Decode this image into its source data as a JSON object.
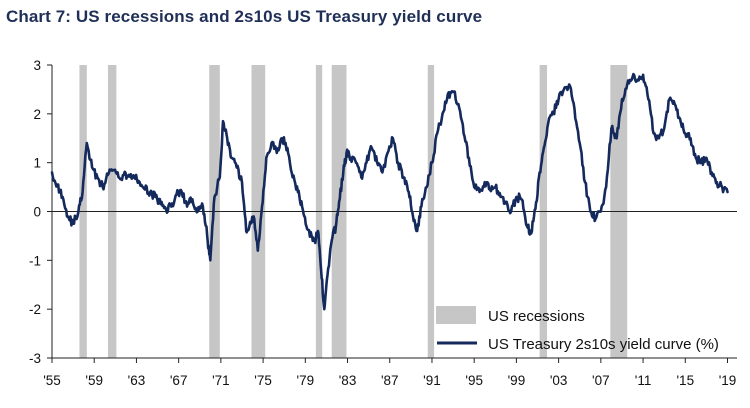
{
  "title": "Chart 7: US recessions and 2s10s US Treasury yield curve",
  "chart_data": {
    "type": "line",
    "title": "Chart 7: US recessions and 2s10s US Treasury yield curve",
    "xlabel": "",
    "ylabel": "",
    "xlim": [
      1955,
      2019.9
    ],
    "ylim": [
      -3,
      3
    ],
    "grid": false,
    "legend_position": "bottom-right",
    "x_ticks": [
      1955,
      1959,
      1963,
      1967,
      1971,
      1975,
      1979,
      1983,
      1987,
      1991,
      1995,
      1999,
      2003,
      2007,
      2011,
      2015,
      2019
    ],
    "x_tick_labels": [
      "'55",
      "'59",
      "'63",
      "'67",
      "'71",
      "'75",
      "'79",
      "'83",
      "'87",
      "'91",
      "'95",
      "'99",
      "'03",
      "'07",
      "'11",
      "'15",
      "'19"
    ],
    "y_ticks": [
      -3,
      -2,
      -1,
      0,
      1,
      2,
      3
    ],
    "y_tick_labels": [
      "-3",
      "-2",
      "-1",
      "0",
      "1",
      "2",
      "3"
    ],
    "recessions": {
      "name": "US recessions",
      "color": "#c6c6c6",
      "periods": [
        [
          1957.6,
          1958.3
        ],
        [
          1960.3,
          1961.1
        ],
        [
          1969.9,
          1970.9
        ],
        [
          1973.9,
          1975.2
        ],
        [
          1980.0,
          1980.6
        ],
        [
          1981.5,
          1982.9
        ],
        [
          1990.6,
          1991.2
        ],
        [
          2001.2,
          2001.9
        ],
        [
          2007.9,
          2009.5
        ]
      ]
    },
    "series": [
      {
        "name": "US Treasury 2s10s yield curve (%)",
        "color": "#152a5c",
        "x": [
          1955.0,
          1955.5,
          1956.0,
          1956.5,
          1957.0,
          1957.5,
          1957.9,
          1958.3,
          1958.8,
          1959.3,
          1959.8,
          1960.3,
          1960.8,
          1961.3,
          1961.8,
          1962.3,
          1962.8,
          1963.3,
          1963.8,
          1964.3,
          1964.8,
          1965.3,
          1965.8,
          1966.3,
          1966.8,
          1967.3,
          1967.8,
          1968.3,
          1968.8,
          1969.3,
          1969.7,
          1970.0,
          1970.4,
          1970.9,
          1971.2,
          1971.6,
          1972.0,
          1972.5,
          1973.0,
          1973.4,
          1973.7,
          1974.1,
          1974.5,
          1974.9,
          1975.3,
          1975.8,
          1976.3,
          1976.8,
          1977.3,
          1977.8,
          1978.3,
          1978.7,
          1979.1,
          1979.6,
          1979.9,
          1980.2,
          1980.5,
          1980.8,
          1981.1,
          1981.5,
          1981.9,
          1982.2,
          1982.6,
          1982.9,
          1983.3,
          1983.8,
          1984.3,
          1984.8,
          1985.3,
          1985.8,
          1986.3,
          1986.8,
          1987.3,
          1987.8,
          1988.3,
          1988.8,
          1989.2,
          1989.6,
          1990.0,
          1990.5,
          1991.0,
          1991.5,
          1992.0,
          1992.5,
          1993.0,
          1993.5,
          1994.0,
          1994.5,
          1995.0,
          1995.5,
          1996.0,
          1996.5,
          1997.0,
          1997.5,
          1998.0,
          1998.5,
          1999.0,
          1999.5,
          2000.0,
          2000.4,
          2000.8,
          2001.2,
          2001.6,
          2002.0,
          2002.5,
          2003.0,
          2003.5,
          2004.0,
          2004.5,
          2005.0,
          2005.5,
          2006.0,
          2006.5,
          2007.0,
          2007.5,
          2008.0,
          2008.5,
          2009.0,
          2009.5,
          2010.0,
          2010.5,
          2011.0,
          2011.5,
          2012.0,
          2012.5,
          2013.0,
          2013.5,
          2014.0,
          2014.5,
          2015.0,
          2015.5,
          2016.0,
          2016.5,
          2017.0,
          2017.5,
          2018.0,
          2018.5,
          2019.0
        ],
        "values": [
          0.8,
          0.55,
          0.3,
          -0.1,
          -0.25,
          0.0,
          0.4,
          1.4,
          0.9,
          0.7,
          0.5,
          0.75,
          0.85,
          0.7,
          0.75,
          0.75,
          0.7,
          0.6,
          0.45,
          0.4,
          0.3,
          0.15,
          0.05,
          0.1,
          0.35,
          0.4,
          0.1,
          0.25,
          0.0,
          0.1,
          -0.5,
          -1.0,
          0.3,
          0.7,
          1.85,
          1.5,
          1.1,
          0.9,
          0.6,
          -0.4,
          -0.3,
          -0.1,
          -0.8,
          0.1,
          1.1,
          1.4,
          1.2,
          1.5,
          1.3,
          0.7,
          0.4,
          0.1,
          -0.3,
          -0.5,
          -0.6,
          -0.4,
          -1.2,
          -2.0,
          -1.3,
          -0.6,
          -0.3,
          0.2,
          0.8,
          1.2,
          1.1,
          1.0,
          0.7,
          1.0,
          1.3,
          1.0,
          0.8,
          1.2,
          1.5,
          1.0,
          0.7,
          0.4,
          -0.1,
          -0.4,
          0.1,
          0.5,
          1.0,
          1.6,
          2.0,
          2.4,
          2.45,
          2.2,
          1.6,
          1.1,
          0.5,
          0.4,
          0.6,
          0.45,
          0.5,
          0.3,
          0.2,
          0.0,
          0.3,
          0.25,
          -0.3,
          -0.45,
          0.05,
          0.8,
          1.3,
          1.8,
          2.0,
          2.3,
          2.5,
          2.6,
          2.1,
          1.4,
          0.6,
          0.0,
          -0.15,
          0.0,
          0.5,
          1.7,
          1.5,
          2.3,
          2.6,
          2.75,
          2.7,
          2.8,
          2.3,
          1.6,
          1.5,
          1.7,
          2.3,
          2.2,
          1.9,
          1.6,
          1.5,
          1.1,
          1.0,
          1.1,
          0.8,
          0.6,
          0.5,
          0.4
        ]
      }
    ]
  },
  "legend": {
    "recession_label": "US recessions",
    "line_label": "US Treasury 2s10s yield curve (%)"
  }
}
